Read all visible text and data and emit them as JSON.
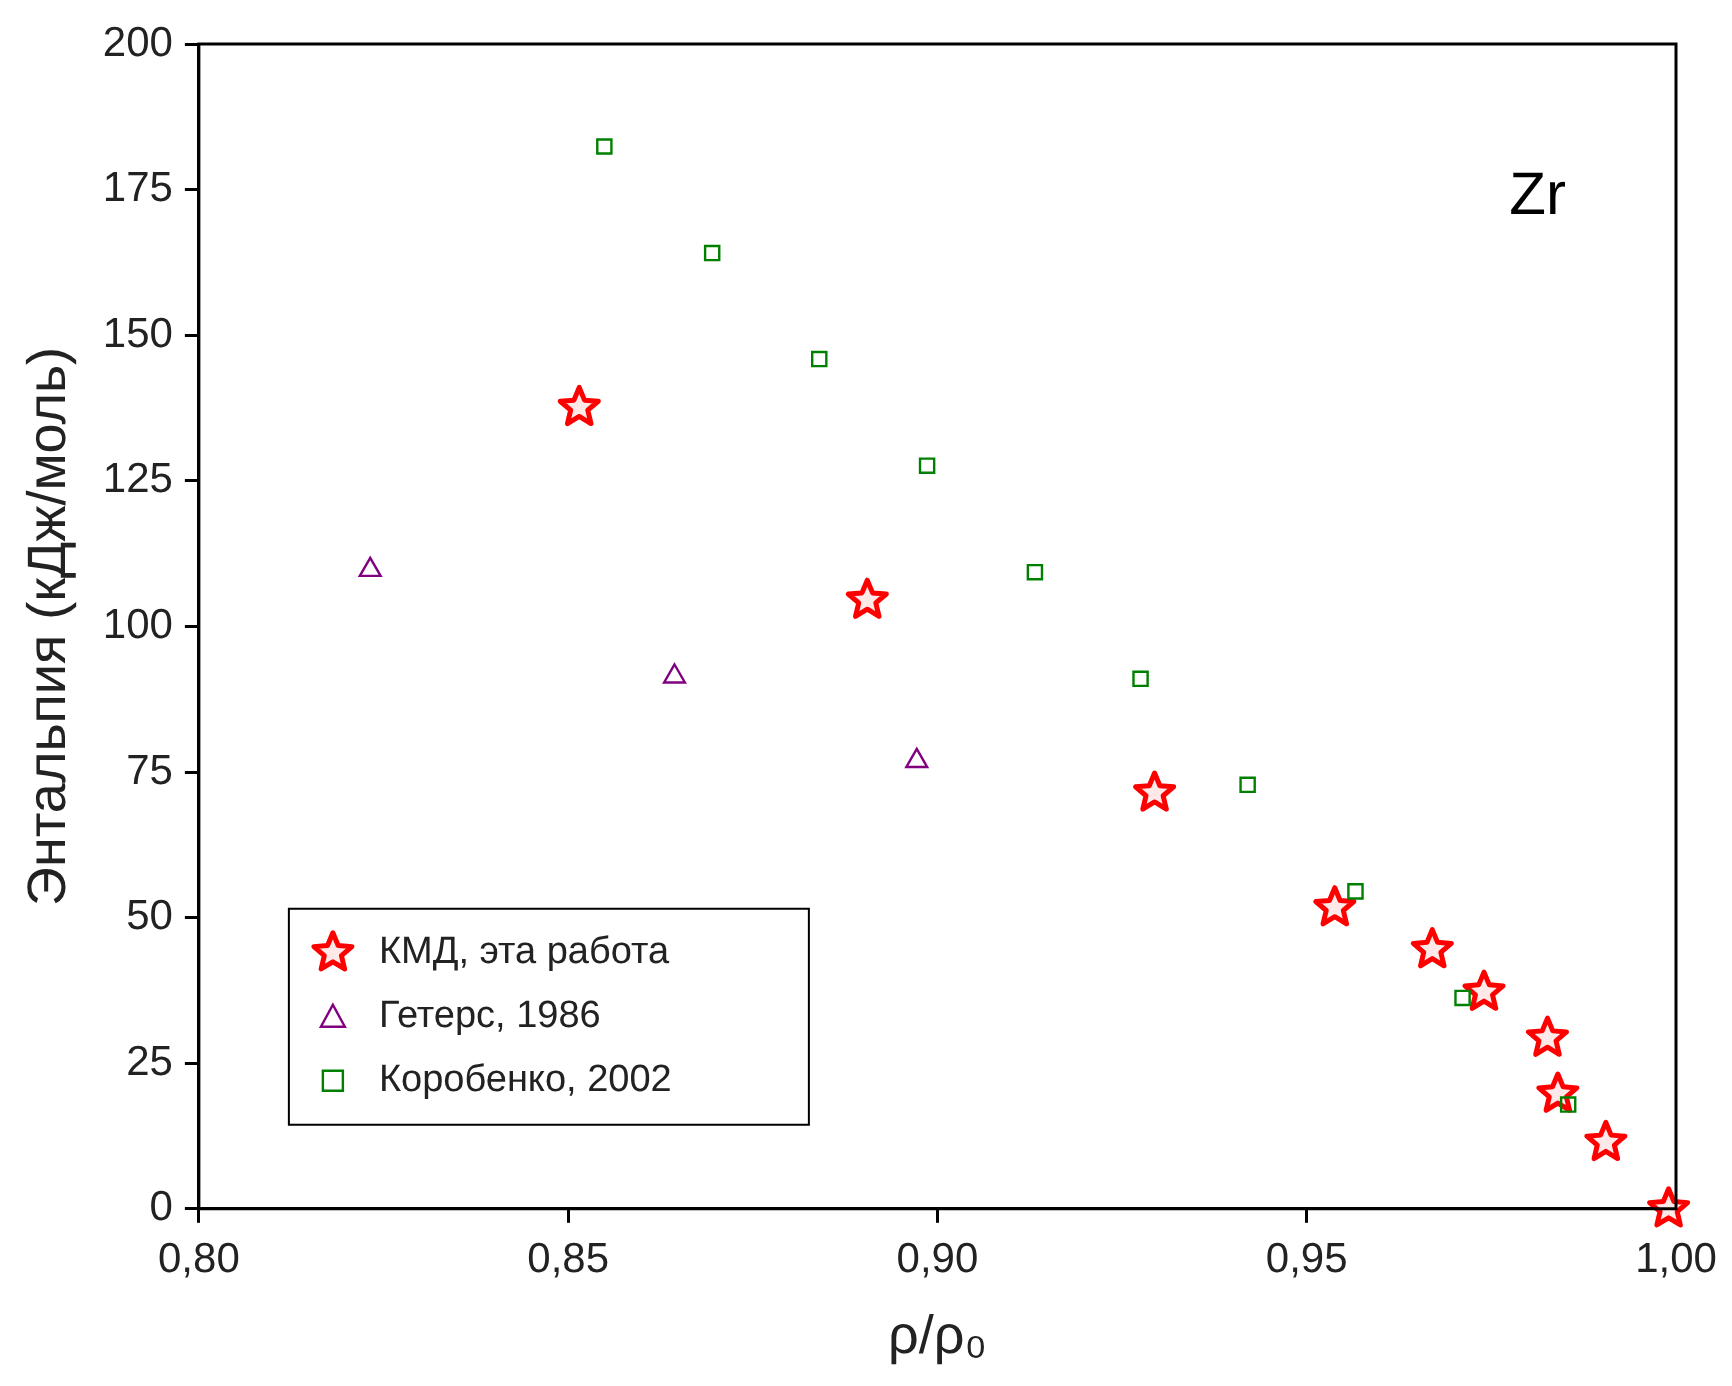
{
  "chart_data": {
    "type": "scatter",
    "xlabel": "ρ/ρ₀",
    "ylabel": "Энтальпия (кДж/моль)",
    "annotations": [
      "Zr"
    ],
    "xlim": [
      0.8,
      1.0
    ],
    "xticks": [
      {
        "value": 0.8,
        "label": "0,80"
      },
      {
        "value": 0.85,
        "label": "0,85"
      },
      {
        "value": 0.9,
        "label": "0,90"
      },
      {
        "value": 0.95,
        "label": "0,95"
      },
      {
        "value": 1.0,
        "label": "1,00"
      }
    ],
    "ylim": [
      0,
      200
    ],
    "yticks": [
      0,
      25,
      50,
      75,
      100,
      125,
      150,
      175,
      200
    ],
    "grid": false,
    "legend": "bottom left",
    "series": [
      {
        "name": "КМД, эта работа",
        "color": "#ff0000",
        "marker": "star",
        "x": [
          0.8515,
          0.8905,
          0.9294,
          0.9538,
          0.967,
          0.974,
          0.9826,
          0.984,
          0.9905,
          0.999
        ],
        "values": [
          137.6,
          104.5,
          71.4,
          51.7,
          44.5,
          37.2,
          29.3,
          19.7,
          11.4,
          0
        ]
      },
      {
        "name": "Гетерс, 1986",
        "color": "#800080",
        "marker": "triangle",
        "x": [
          0.8232,
          0.8644,
          0.8972
        ],
        "values": [
          109.7,
          91.4,
          76.9
        ]
      },
      {
        "name": "Коробенко, 2002",
        "color": "#008000",
        "marker": "square",
        "x": [
          0.8549,
          0.8695,
          0.884,
          0.8986,
          0.9132,
          0.9275,
          0.942,
          0.9566,
          0.9711,
          0.9854
        ],
        "values": [
          182.4,
          164.1,
          145.9,
          127.6,
          109.3,
          91.0,
          72.8,
          54.5,
          36.2,
          17.9
        ]
      }
    ]
  }
}
